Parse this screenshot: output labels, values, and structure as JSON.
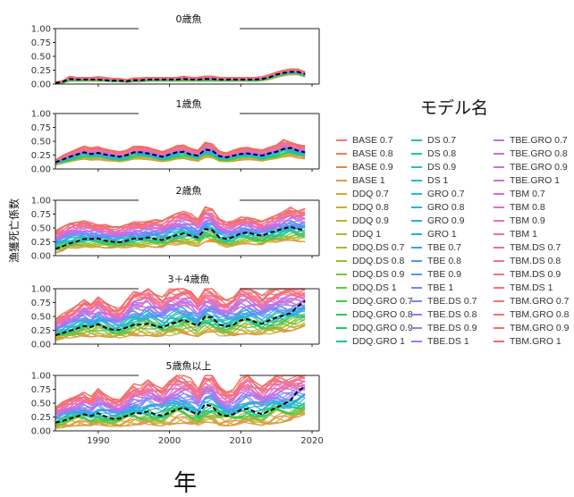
{
  "figure": {
    "ylabel": "漁獲死亡係数",
    "xlabel": "年",
    "legend_title": "モデル名"
  },
  "legend": {
    "entries": [
      {
        "name": "BASE 0.7",
        "color": "#f8766d"
      },
      {
        "name": "BASE 0.8",
        "color": "#f07c4e"
      },
      {
        "name": "BASE 0.9",
        "color": "#e8853a"
      },
      {
        "name": "BASE 1",
        "color": "#e09a3e"
      },
      {
        "name": "DDQ 0.7",
        "color": "#d8a236"
      },
      {
        "name": "DDQ 0.8",
        "color": "#cfaa2e"
      },
      {
        "name": "DDQ 0.9",
        "color": "#c3b12b"
      },
      {
        "name": "DDQ 1",
        "color": "#b5b82a"
      },
      {
        "name": "DDQ.DS 0.7",
        "color": "#a5bd2a"
      },
      {
        "name": "DDQ.DS 0.8",
        "color": "#93c22d"
      },
      {
        "name": "DDQ.DS 0.9",
        "color": "#7bc533"
      },
      {
        "name": "DDQ.DS 1",
        "color": "#5ec83c"
      },
      {
        "name": "DDQ.GRO 0.7",
        "color": "#3fc94a"
      },
      {
        "name": "DDQ.GRO 0.8",
        "color": "#2bc95e"
      },
      {
        "name": "DDQ.GRO 0.9",
        "color": "#1dc874"
      },
      {
        "name": "DDQ.GRO 1",
        "color": "#19c68a"
      },
      {
        "name": "DS 0.7",
        "color": "#1cc59a"
      },
      {
        "name": "DS 0.8",
        "color": "#1fc3aa"
      },
      {
        "name": "DS 0.9",
        "color": "#22c1b8"
      },
      {
        "name": "DS 1",
        "color": "#25bec6"
      },
      {
        "name": "GRO 0.7",
        "color": "#27bad2"
      },
      {
        "name": "GRO 0.8",
        "color": "#28b5dd"
      },
      {
        "name": "GRO 0.9",
        "color": "#29afe7"
      },
      {
        "name": "GRO 1",
        "color": "#2ba8ef"
      },
      {
        "name": "TBE 0.7",
        "color": "#33a1f5"
      },
      {
        "name": "TBE 0.8",
        "color": "#4599fa"
      },
      {
        "name": "TBE 0.9",
        "color": "#5891fd"
      },
      {
        "name": "TBE 1",
        "color": "#6b89fe"
      },
      {
        "name": "TBE.DS 0.7",
        "color": "#7d82fe"
      },
      {
        "name": "TBE.DS 0.8",
        "color": "#8f7cfc"
      },
      {
        "name": "TBE.DS 0.9",
        "color": "#a077f8"
      },
      {
        "name": "TBE.DS 1",
        "color": "#ae73f2"
      },
      {
        "name": "TBE.GRO 0.7",
        "color": "#bb70ec"
      },
      {
        "name": "TBE.GRO 0.8",
        "color": "#c76ee5"
      },
      {
        "name": "TBE.GRO 0.9",
        "color": "#d16ddd"
      },
      {
        "name": "TBE.GRO 1",
        "color": "#da6cd4"
      },
      {
        "name": "TBM 0.7",
        "color": "#e16bca"
      },
      {
        "name": "TBM 0.8",
        "color": "#e76bbf"
      },
      {
        "name": "TBM 0.9",
        "color": "#ec6bb4"
      },
      {
        "name": "TBM 1",
        "color": "#f06ca8"
      },
      {
        "name": "TBM.DS 0.7",
        "color": "#f36d9c"
      },
      {
        "name": "TBM.DS 0.8",
        "color": "#f56f90"
      },
      {
        "name": "TBM.DS 0.9",
        "color": "#f67184"
      },
      {
        "name": "TBM.DS 1",
        "color": "#f77479"
      },
      {
        "name": "TBM.GRO 0.7",
        "color": "#f8766d"
      },
      {
        "name": "TBM.GRO 0.8",
        "color": "#f57268"
      },
      {
        "name": "TBM.GRO 0.9",
        "color": "#f26e63"
      },
      {
        "name": "TBM.GRO 1",
        "color": "#ee6a5f"
      }
    ]
  },
  "chart_data": {
    "type": "line",
    "x": [
      1984,
      1985,
      1986,
      1987,
      1988,
      1989,
      1990,
      1991,
      1992,
      1993,
      1994,
      1995,
      1996,
      1997,
      1998,
      1999,
      2000,
      2001,
      2002,
      2003,
      2004,
      2005,
      2006,
      2007,
      2008,
      2009,
      2010,
      2011,
      2012,
      2013,
      2014,
      2015,
      2016,
      2017,
      2018,
      2019
    ],
    "xlim": [
      1984,
      2021
    ],
    "xticks": [
      1990,
      2000,
      2010,
      2020
    ],
    "ylim": [
      0,
      1
    ],
    "yticks": [
      "0.00",
      "0.25",
      "0.50",
      "0.75",
      "1.00"
    ],
    "grid": false,
    "legend_position": "right",
    "reference_line_style": "black dashed",
    "panels": [
      {
        "title": "0歳魚",
        "reference": [
          0.02,
          0.04,
          0.09,
          0.08,
          0.08,
          0.08,
          0.08,
          0.07,
          0.06,
          0.06,
          0.05,
          0.07,
          0.07,
          0.08,
          0.08,
          0.08,
          0.08,
          0.08,
          0.09,
          0.08,
          0.08,
          0.09,
          0.09,
          0.08,
          0.08,
          0.08,
          0.08,
          0.08,
          0.08,
          0.09,
          0.12,
          0.17,
          0.2,
          0.22,
          0.22,
          0.18
        ],
        "upper": [
          0.03,
          0.06,
          0.14,
          0.12,
          0.12,
          0.12,
          0.13,
          0.12,
          0.1,
          0.1,
          0.08,
          0.11,
          0.11,
          0.12,
          0.12,
          0.12,
          0.12,
          0.12,
          0.14,
          0.12,
          0.12,
          0.14,
          0.14,
          0.12,
          0.12,
          0.12,
          0.12,
          0.12,
          0.12,
          0.13,
          0.17,
          0.22,
          0.25,
          0.27,
          0.27,
          0.22
        ],
        "lower": [
          0.01,
          0.02,
          0.05,
          0.05,
          0.05,
          0.05,
          0.05,
          0.05,
          0.04,
          0.04,
          0.03,
          0.04,
          0.04,
          0.05,
          0.05,
          0.05,
          0.05,
          0.05,
          0.05,
          0.05,
          0.05,
          0.05,
          0.05,
          0.05,
          0.05,
          0.05,
          0.05,
          0.05,
          0.05,
          0.06,
          0.08,
          0.12,
          0.15,
          0.17,
          0.17,
          0.13
        ]
      },
      {
        "title": "1歳魚",
        "reference": [
          0.12,
          0.17,
          0.22,
          0.26,
          0.3,
          0.27,
          0.29,
          0.26,
          0.24,
          0.22,
          0.25,
          0.3,
          0.3,
          0.28,
          0.25,
          0.22,
          0.26,
          0.3,
          0.31,
          0.26,
          0.24,
          0.35,
          0.33,
          0.23,
          0.21,
          0.24,
          0.27,
          0.28,
          0.26,
          0.24,
          0.28,
          0.31,
          0.36,
          0.38,
          0.33,
          0.3
        ],
        "upper": [
          0.16,
          0.24,
          0.3,
          0.36,
          0.41,
          0.38,
          0.4,
          0.36,
          0.33,
          0.31,
          0.34,
          0.41,
          0.41,
          0.39,
          0.35,
          0.31,
          0.36,
          0.42,
          0.43,
          0.37,
          0.34,
          0.48,
          0.45,
          0.32,
          0.29,
          0.34,
          0.38,
          0.39,
          0.36,
          0.34,
          0.39,
          0.43,
          0.53,
          0.48,
          0.44,
          0.42
        ],
        "lower": [
          0.07,
          0.1,
          0.13,
          0.16,
          0.18,
          0.16,
          0.17,
          0.15,
          0.14,
          0.13,
          0.15,
          0.18,
          0.18,
          0.17,
          0.15,
          0.13,
          0.15,
          0.18,
          0.19,
          0.16,
          0.14,
          0.21,
          0.2,
          0.14,
          0.13,
          0.14,
          0.16,
          0.17,
          0.16,
          0.14,
          0.17,
          0.19,
          0.22,
          0.23,
          0.2,
          0.18
        ]
      },
      {
        "title": "2歳魚",
        "reference": [
          0.12,
          0.17,
          0.22,
          0.26,
          0.3,
          0.3,
          0.31,
          0.27,
          0.25,
          0.24,
          0.27,
          0.31,
          0.3,
          0.33,
          0.3,
          0.28,
          0.33,
          0.37,
          0.4,
          0.36,
          0.33,
          0.48,
          0.46,
          0.33,
          0.3,
          0.34,
          0.4,
          0.42,
          0.38,
          0.36,
          0.41,
          0.45,
          0.49,
          0.52,
          0.48,
          0.46
        ],
        "upper": [
          0.45,
          0.52,
          0.58,
          0.6,
          0.63,
          0.6,
          0.58,
          0.56,
          0.52,
          0.52,
          0.56,
          0.61,
          0.61,
          0.65,
          0.65,
          0.63,
          0.7,
          0.76,
          0.8,
          0.76,
          0.69,
          0.88,
          0.84,
          0.66,
          0.6,
          0.63,
          0.7,
          0.72,
          0.66,
          0.62,
          0.68,
          0.73,
          0.8,
          0.88,
          0.84,
          0.85
        ],
        "lower": [
          0.05,
          0.08,
          0.11,
          0.13,
          0.15,
          0.15,
          0.16,
          0.14,
          0.13,
          0.12,
          0.14,
          0.16,
          0.15,
          0.17,
          0.15,
          0.14,
          0.17,
          0.19,
          0.21,
          0.19,
          0.17,
          0.25,
          0.24,
          0.17,
          0.15,
          0.17,
          0.21,
          0.22,
          0.2,
          0.19,
          0.22,
          0.24,
          0.26,
          0.28,
          0.26,
          0.25
        ]
      },
      {
        "title": "3＋4歳魚",
        "reference": [
          0.16,
          0.2,
          0.24,
          0.28,
          0.33,
          0.31,
          0.36,
          0.3,
          0.26,
          0.26,
          0.3,
          0.35,
          0.35,
          0.37,
          0.33,
          0.3,
          0.36,
          0.4,
          0.44,
          0.38,
          0.33,
          0.5,
          0.48,
          0.35,
          0.32,
          0.35,
          0.43,
          0.45,
          0.4,
          0.37,
          0.43,
          0.48,
          0.52,
          0.56,
          0.68,
          0.78
        ],
        "upper": [
          0.45,
          0.55,
          0.62,
          0.7,
          0.8,
          0.72,
          0.85,
          0.75,
          0.68,
          0.65,
          0.8,
          0.95,
          0.92,
          1.0,
          0.9,
          0.85,
          1.0,
          1.0,
          1.0,
          0.95,
          0.8,
          1.0,
          1.0,
          0.88,
          0.8,
          0.85,
          1.0,
          1.0,
          0.95,
          0.88,
          0.98,
          1.0,
          1.0,
          1.0,
          1.0,
          1.0
        ],
        "lower": [
          0.07,
          0.09,
          0.11,
          0.12,
          0.14,
          0.13,
          0.15,
          0.13,
          0.11,
          0.11,
          0.13,
          0.15,
          0.15,
          0.16,
          0.14,
          0.13,
          0.15,
          0.17,
          0.19,
          0.16,
          0.14,
          0.21,
          0.2,
          0.15,
          0.14,
          0.15,
          0.18,
          0.19,
          0.17,
          0.16,
          0.18,
          0.2,
          0.22,
          0.24,
          0.28,
          0.33
        ]
      },
      {
        "title": "5歳魚以上",
        "reference": [
          0.15,
          0.18,
          0.22,
          0.26,
          0.3,
          0.27,
          0.32,
          0.26,
          0.22,
          0.22,
          0.27,
          0.32,
          0.32,
          0.35,
          0.3,
          0.27,
          0.33,
          0.38,
          0.42,
          0.35,
          0.3,
          0.48,
          0.44,
          0.3,
          0.27,
          0.3,
          0.38,
          0.4,
          0.34,
          0.3,
          0.36,
          0.42,
          0.48,
          0.55,
          0.72,
          0.8
        ],
        "upper": [
          0.42,
          0.52,
          0.58,
          0.63,
          0.7,
          0.62,
          0.76,
          0.65,
          0.58,
          0.56,
          0.7,
          0.85,
          0.82,
          0.92,
          0.82,
          0.76,
          0.9,
          1.0,
          1.0,
          0.95,
          0.75,
          1.0,
          1.0,
          0.8,
          0.7,
          0.75,
          0.95,
          1.0,
          0.88,
          0.8,
          0.9,
          1.0,
          1.0,
          1.0,
          1.0,
          1.0
        ],
        "lower": [
          0.05,
          0.06,
          0.08,
          0.09,
          0.1,
          0.09,
          0.11,
          0.09,
          0.08,
          0.08,
          0.09,
          0.11,
          0.11,
          0.12,
          0.1,
          0.09,
          0.11,
          0.13,
          0.14,
          0.12,
          0.1,
          0.16,
          0.15,
          0.1,
          0.09,
          0.1,
          0.13,
          0.14,
          0.12,
          0.1,
          0.12,
          0.14,
          0.16,
          0.19,
          0.25,
          0.3
        ]
      }
    ]
  }
}
